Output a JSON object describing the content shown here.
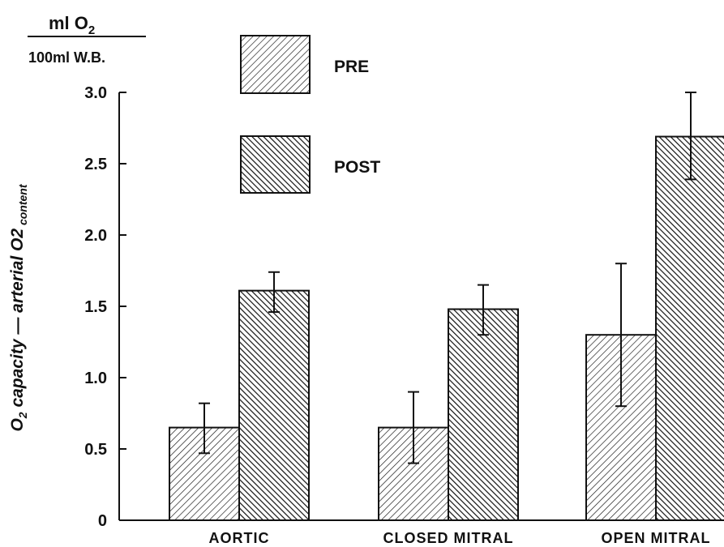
{
  "chart_data": {
    "type": "bar",
    "units": {
      "numerator": "ml O",
      "numerator_sub": "2",
      "denominator": "100ml W.B."
    },
    "ylabel": {
      "parts": [
        "O",
        "2",
        " capacity — arterial  O",
        "2",
        " content"
      ]
    },
    "categories": [
      "AORTIC",
      "CLOSED MITRAL",
      "OPEN MITRAL"
    ],
    "series": [
      {
        "name": "PRE",
        "values": [
          0.65,
          0.65,
          1.3
        ],
        "err_low": [
          0.47,
          0.4,
          0.8
        ],
        "err_high": [
          0.82,
          0.9,
          1.8
        ]
      },
      {
        "name": "POST",
        "values": [
          1.61,
          1.48,
          2.69
        ],
        "err_low": [
          1.46,
          1.3,
          2.39
        ],
        "err_high": [
          1.74,
          1.65,
          3.0
        ]
      }
    ],
    "ylim": [
      0,
      3.0
    ],
    "yticks": [
      "0",
      "0.5",
      "1.0",
      "1.5",
      "2.0",
      "2.5",
      "3.0"
    ],
    "ytick_values": [
      0,
      0.5,
      1.0,
      1.5,
      2.0,
      2.5,
      3.0
    ],
    "legend_position": "top-left",
    "grid": false,
    "patterns": {
      "PRE": "fine-hatch",
      "POST": "dense-hatch"
    }
  }
}
